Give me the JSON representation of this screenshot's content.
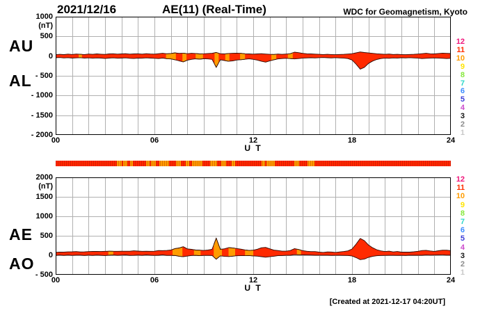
{
  "header": {
    "date": "2021/12/16",
    "title": "AE(11) (Real-Time)",
    "organization": "WDC for Geomagnetism, Kyoto"
  },
  "footer": {
    "created_at": "[Created at 2021-12-17 04:20UT]"
  },
  "axis": {
    "unit_label": "(nT)",
    "x_axis_title": "U T",
    "x_tick_labels": [
      "00",
      "06",
      "12",
      "18",
      "24"
    ],
    "x_tick_hours": [
      0,
      6,
      12,
      18,
      24
    ]
  },
  "panels": {
    "top": {
      "left_labels": [
        "AU",
        "AL"
      ],
      "y_ticks": [
        {
          "value": 1000,
          "label": "1000"
        },
        {
          "value": 500,
          "label": "500"
        },
        {
          "value": 0,
          "label": "0"
        },
        {
          "value": -500,
          "label": "- 500"
        },
        {
          "value": -1000,
          "label": "- 1000"
        },
        {
          "value": -1500,
          "label": "- 1500"
        },
        {
          "value": -2000,
          "label": "- 2000"
        }
      ]
    },
    "bottom": {
      "left_labels": [
        "AE",
        "AO"
      ],
      "y_ticks": [
        {
          "value": 2000,
          "label": "2000"
        },
        {
          "value": 1500,
          "label": "1500"
        },
        {
          "value": 1000,
          "label": "1000"
        },
        {
          "value": 500,
          "label": "500"
        },
        {
          "value": 0,
          "label": "0"
        },
        {
          "value": -500,
          "label": "- 500"
        }
      ]
    }
  },
  "station_scale": {
    "values": [
      "12",
      "11",
      "10",
      "9",
      "8",
      "7",
      "6",
      "5",
      "4",
      "3",
      "2",
      "1"
    ],
    "colors": [
      "#f0147a",
      "#ff2e00",
      "#ff9c00",
      "#ffe400",
      "#86e83c",
      "#2fd8c8",
      "#3c8cff",
      "#3c3cd8",
      "#cc4ccc",
      "#141414",
      "#8c8c8c",
      "#c8c8c8"
    ]
  },
  "quality_bar": {
    "base_color": "#ff2800",
    "alt_color": "#ff9c00",
    "alt_intervals_hours": [
      [
        3.7,
        4.0
      ],
      [
        4.1,
        4.35
      ],
      [
        4.5,
        4.7
      ],
      [
        5.5,
        5.7
      ],
      [
        5.8,
        6.1
      ],
      [
        6.3,
        6.9
      ],
      [
        7.3,
        7.6
      ],
      [
        7.9,
        8.1
      ],
      [
        8.3,
        8.9
      ],
      [
        9.4,
        9.8
      ],
      [
        10.05,
        10.35
      ],
      [
        10.7,
        10.9
      ],
      [
        12.5,
        12.7
      ],
      [
        12.8,
        13.3
      ],
      [
        14.5,
        14.8
      ],
      [
        15.3,
        15.7
      ]
    ]
  },
  "chart_data": [
    {
      "type": "area",
      "name": "au-al",
      "title": "AU / AL auroral electrojet indices, 2021/12/16",
      "x_label": "U T",
      "x_range_hours": [
        0,
        24
      ],
      "x_step_hours": 0.25,
      "ylim": [
        -2000,
        1000
      ],
      "y_tick_step": 500,
      "y_unit": "nT",
      "grid": true,
      "fill_color": "#ff2a00",
      "alt_fill_color": "#ff9c00",
      "alt_intervals_hours": [
        [
          1.4,
          1.6
        ],
        [
          6.7,
          7.3
        ],
        [
          7.7,
          7.95
        ],
        [
          8.5,
          8.95
        ],
        [
          9.65,
          9.9
        ],
        [
          10.3,
          10.55
        ],
        [
          11.2,
          11.5
        ],
        [
          13.1,
          13.4
        ],
        [
          14.1,
          14.4
        ]
      ],
      "series": [
        {
          "name": "AU",
          "values": [
            35,
            45,
            38,
            50,
            42,
            52,
            45,
            40,
            52,
            46,
            56,
            48,
            44,
            56,
            60,
            50,
            56,
            62,
            50,
            56,
            60,
            50,
            62,
            54,
            50,
            62,
            72,
            60,
            66,
            82,
            70,
            76,
            62,
            72,
            66,
            56,
            60,
            66,
            72,
            92,
            62,
            56,
            66,
            72,
            76,
            70,
            60,
            55,
            50,
            56,
            62,
            52,
            46,
            42,
            52,
            46,
            52,
            62,
            100,
            88,
            70,
            60,
            55,
            50,
            45,
            40,
            46,
            40,
            36,
            42,
            46,
            52,
            62,
            85,
            105,
            92,
            80,
            70,
            60,
            52,
            46,
            52,
            42,
            46,
            40,
            36,
            42,
            46,
            52,
            62,
            72,
            60,
            56,
            66,
            76,
            70,
            64
          ]
        },
        {
          "name": "AL",
          "values": [
            -42,
            -36,
            -46,
            -40,
            -50,
            -44,
            -40,
            -50,
            -44,
            -54,
            -46,
            -50,
            -60,
            -50,
            -44,
            -54,
            -50,
            -44,
            -56,
            -60,
            -50,
            -54,
            -44,
            -50,
            -56,
            -62,
            -50,
            -66,
            -72,
            -92,
            -120,
            -145,
            -105,
            -82,
            -70,
            -76,
            -66,
            -72,
            -82,
            -285,
            -92,
            -112,
            -132,
            -120,
            -100,
            -90,
            -80,
            -70,
            -82,
            -102,
            -132,
            -152,
            -122,
            -92,
            -72,
            -62,
            -56,
            -62,
            -72,
            -62,
            -52,
            -46,
            -42,
            -46,
            -40,
            -36,
            -42,
            -46,
            -40,
            -46,
            -52,
            -62,
            -100,
            -205,
            -330,
            -285,
            -185,
            -125,
            -85,
            -62,
            -52,
            -56,
            -46,
            -52,
            -42,
            -46,
            -40,
            -46,
            -52,
            -62,
            -56,
            -52,
            -46,
            -52,
            -56,
            -62,
            -56
          ]
        }
      ]
    },
    {
      "type": "area",
      "name": "ae-ao",
      "title": "AE / AO auroral electrojet indices, 2021/12/16",
      "x_label": "U T",
      "x_range_hours": [
        0,
        24
      ],
      "x_step_hours": 0.25,
      "ylim": [
        -500,
        2000
      ],
      "y_tick_step": 500,
      "y_unit": "nT",
      "grid": true,
      "fill_color": "#ff2a00",
      "alt_fill_color": "#ff9c00",
      "alt_intervals_hours": [
        [
          3.2,
          3.5
        ],
        [
          7.1,
          7.7
        ],
        [
          8.4,
          8.8
        ],
        [
          9.6,
          10.1
        ],
        [
          10.5,
          10.9
        ],
        [
          11.5,
          12.0
        ],
        [
          14.65,
          14.9
        ]
      ],
      "series": [
        {
          "name": "AE",
          "values": [
            75,
            80,
            82,
            88,
            90,
            95,
            85,
            88,
            95,
            98,
            100,
            96,
            102,
            104,
            102,
            102,
            104,
            104,
            104,
            114,
            108,
            102,
            104,
            102,
            104,
            122,
            120,
            124,
            136,
            172,
            188,
            219,
            165,
            152,
            134,
            130,
            124,
            136,
            152,
            440,
            152,
            166,
            196,
            190,
            174,
            158,
            138,
            123,
            130,
            156,
            192,
            202,
            166,
            132,
            122,
            106,
            106,
            122,
            170,
            148,
            120,
            104,
            95,
            94,
            83,
            74,
            86,
            84,
            74,
            86,
            96,
            112,
            160,
            288,
            432,
            375,
            263,
            193,
            143,
            112,
            96,
            106,
            86,
            96,
            80,
            80,
            80,
            90,
            102,
            122,
            126,
            110,
            100,
            116,
            130,
            130,
            118
          ]
        },
        {
          "name": "AO",
          "values": [
            -4,
            5,
            -4,
            5,
            -4,
            4,
            3,
            -5,
            4,
            -4,
            5,
            -1,
            -8,
            3,
            8,
            -2,
            3,
            9,
            -3,
            -2,
            5,
            -2,
            9,
            2,
            -3,
            0,
            11,
            -3,
            -3,
            -5,
            -25,
            -35,
            -21,
            -5,
            -2,
            -10,
            -3,
            -3,
            -5,
            -100,
            -15,
            -28,
            -33,
            -24,
            -12,
            -10,
            -10,
            -8,
            -16,
            -23,
            -35,
            -50,
            -38,
            -25,
            -10,
            -8,
            -2,
            0,
            14,
            13,
            9,
            7,
            6,
            2,
            2,
            2,
            2,
            -3,
            -2,
            -2,
            -3,
            -5,
            -19,
            -60,
            -113,
            -97,
            -53,
            -28,
            -13,
            -5,
            -3,
            -2,
            -2,
            -3,
            -1,
            -5,
            1,
            0,
            0,
            0,
            8,
            4,
            5,
            7,
            10,
            4,
            4
          ]
        }
      ]
    }
  ]
}
